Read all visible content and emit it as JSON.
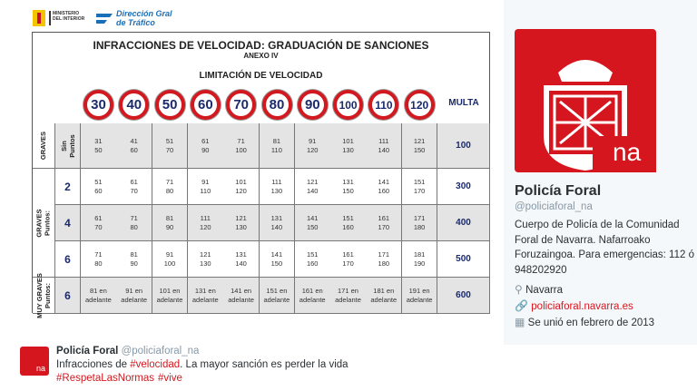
{
  "header": {
    "ministry": "MINISTERIO DEL INTERIOR",
    "dgt_line1": "Dirección Gral",
    "dgt_line2": "de Tráfico"
  },
  "table": {
    "title": "INFRACCIONES DE VELOCIDAD: GRADUACIÓN DE SANCIONES",
    "subtitle": "ANEXO IV",
    "heading": "LIMITACIÓN DE VELOCIDAD",
    "speeds": [
      "30",
      "40",
      "50",
      "60",
      "70",
      "80",
      "90",
      "100",
      "110",
      "120"
    ],
    "fine_header": "MULTA",
    "groups": [
      {
        "label": "GRAVES",
        "rows": [
          {
            "points": "Sin Puntos",
            "cells": [
              [
                "31",
                "50"
              ],
              [
                "41",
                "60"
              ],
              [
                "51",
                "70"
              ],
              [
                "61",
                "90"
              ],
              [
                "71",
                "100"
              ],
              [
                "81",
                "110"
              ],
              [
                "91",
                "120"
              ],
              [
                "101",
                "130"
              ],
              [
                "111",
                "140"
              ],
              [
                "121",
                "150"
              ]
            ],
            "fine": "100"
          }
        ]
      },
      {
        "label": "GRAVES",
        "sublabel": "Puntos:",
        "rows": [
          {
            "points": "2",
            "cells": [
              [
                "51",
                "60"
              ],
              [
                "61",
                "70"
              ],
              [
                "71",
                "80"
              ],
              [
                "91",
                "110"
              ],
              [
                "101",
                "120"
              ],
              [
                "111",
                "130"
              ],
              [
                "121",
                "140"
              ],
              [
                "131",
                "150"
              ],
              [
                "141",
                "160"
              ],
              [
                "151",
                "170"
              ]
            ],
            "fine": "300"
          },
          {
            "points": "4",
            "cells": [
              [
                "61",
                "70"
              ],
              [
                "71",
                "80"
              ],
              [
                "81",
                "90"
              ],
              [
                "111",
                "120"
              ],
              [
                "121",
                "130"
              ],
              [
                "131",
                "140"
              ],
              [
                "141",
                "150"
              ],
              [
                "151",
                "160"
              ],
              [
                "161",
                "170"
              ],
              [
                "171",
                "180"
              ]
            ],
            "fine": "400"
          },
          {
            "points": "6",
            "cells": [
              [
                "71",
                "80"
              ],
              [
                "81",
                "90"
              ],
              [
                "91",
                "100"
              ],
              [
                "121",
                "130"
              ],
              [
                "131",
                "140"
              ],
              [
                "141",
                "150"
              ],
              [
                "151",
                "160"
              ],
              [
                "161",
                "170"
              ],
              [
                "171",
                "180"
              ],
              [
                "181",
                "190"
              ]
            ],
            "fine": "500"
          }
        ]
      },
      {
        "label": "MUY GRAVES",
        "sublabel": "Puntos:",
        "rows": [
          {
            "points": "6",
            "cells": [
              [
                "81 en",
                "adelante"
              ],
              [
                "91 en",
                "adelante"
              ],
              [
                "101 en",
                "adelante"
              ],
              [
                "131 en",
                "adelante"
              ],
              [
                "141 en",
                "adelante"
              ],
              [
                "151 en",
                "adelante"
              ],
              [
                "161 en",
                "adelante"
              ],
              [
                "171 en",
                "adelante"
              ],
              [
                "181 en",
                "adelante"
              ],
              [
                "191 en",
                "adelante"
              ]
            ],
            "fine": "600"
          }
        ]
      }
    ]
  },
  "profile": {
    "logo_text": "na",
    "name": "Policía Foral",
    "handle": "@policiaforal_na",
    "bio": "Cuerpo de Policía de la Comunidad Foral de Navarra. Nafarroako Foruzaingoa. Para emergencias: 112 ó 948202920",
    "location": "Navarra",
    "url": "policiaforal.navarra.es",
    "joined": "Se unió en febrero de 2013"
  },
  "tweet": {
    "name": "Policía Foral",
    "handle": "@policiaforal_na",
    "avatar_text": "na",
    "line1": [
      "Infracciones de ",
      "#velocidad",
      ". La mayor sanción es perder la vida"
    ],
    "line2": [
      "#RespetaLasNormas",
      "#vive"
    ]
  }
}
